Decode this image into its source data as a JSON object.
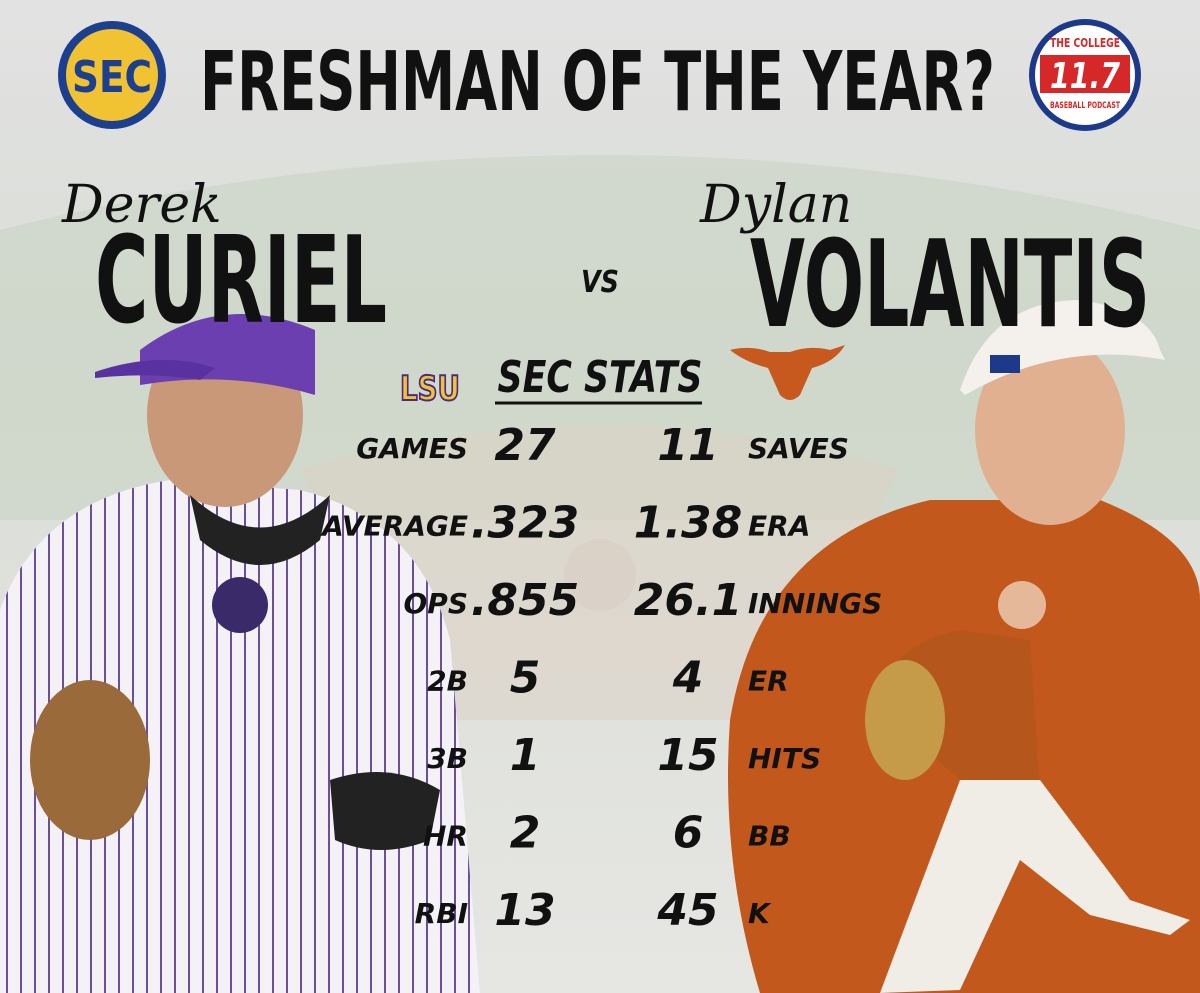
{
  "header": {
    "left_logo": "SEC",
    "title": "FRESHMAN OF THE YEAR?",
    "right_logo": {
      "top": "THE COLLEGE",
      "number": "11.7",
      "bottom": "BASEBALL PODCAST"
    }
  },
  "players": [
    {
      "first_name": "Derek",
      "last_name": "CURIEL",
      "team_logo": "LSU"
    },
    {
      "first_name": "Dylan",
      "last_name": "VOLANTIS"
    }
  ],
  "versus": "VS",
  "stats_title": "SEC STATS",
  "stats": {
    "left": [
      {
        "label": "GAMES",
        "value": "27"
      },
      {
        "label": "AVERAGE",
        "value": ".323"
      },
      {
        "label": "OPS",
        "value": ".855"
      },
      {
        "label": "2B",
        "value": "5"
      },
      {
        "label": "3B",
        "value": "1"
      },
      {
        "label": "HR",
        "value": "2"
      },
      {
        "label": "RBI",
        "value": "13"
      }
    ],
    "right": [
      {
        "label": "SAVES",
        "value": "11"
      },
      {
        "label": "ERA",
        "value": "1.38"
      },
      {
        "label": "INNINGS",
        "value": "26.1"
      },
      {
        "label": "ER",
        "value": "4"
      },
      {
        "label": "HITS",
        "value": "15"
      },
      {
        "label": "BB",
        "value": "6"
      },
      {
        "label": "K",
        "value": "45"
      }
    ]
  }
}
